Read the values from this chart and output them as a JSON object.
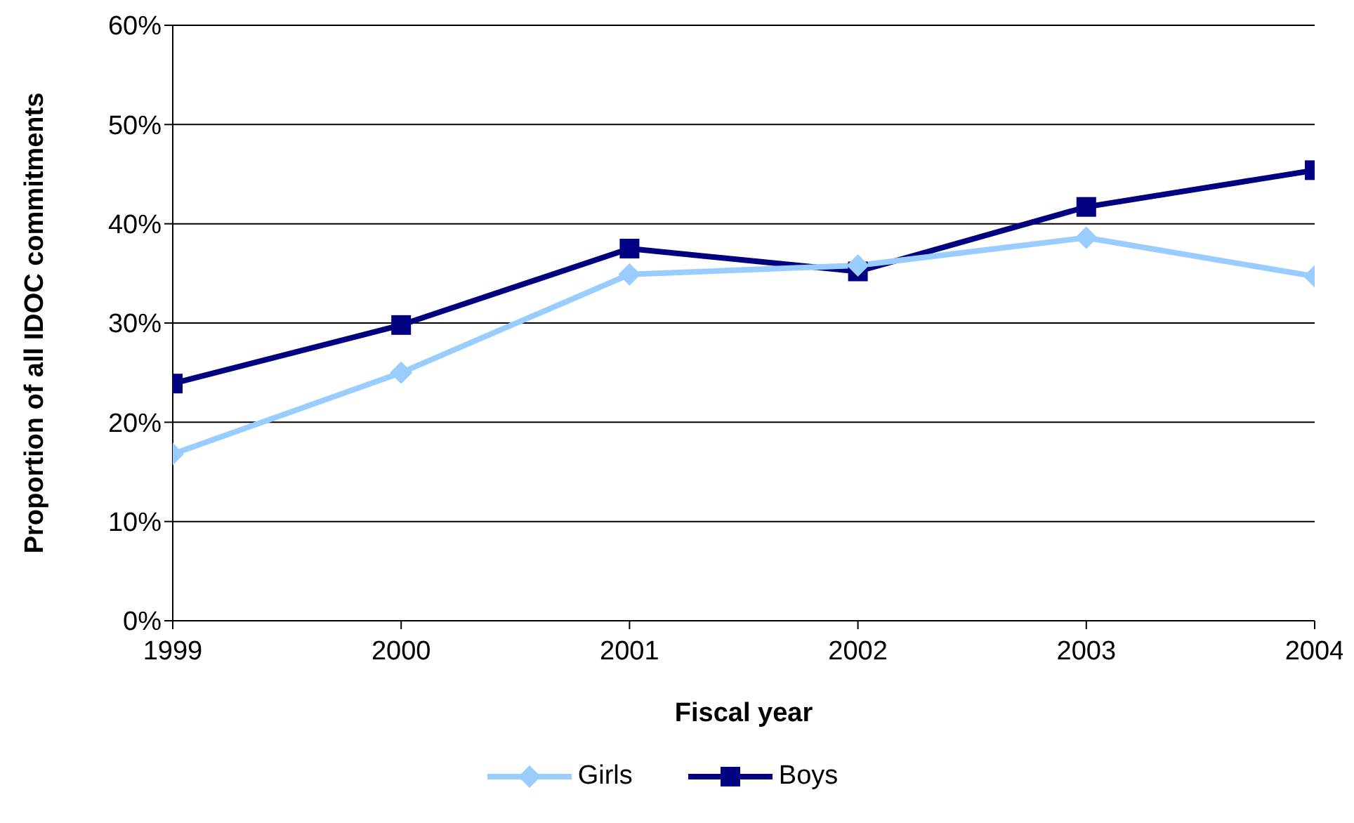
{
  "chart_data": {
    "type": "line",
    "xlabel": "Fiscal year",
    "ylabel": "Proportion of all IDOC commitments",
    "x": [
      1999,
      2000,
      2001,
      2002,
      2003,
      2004
    ],
    "series": [
      {
        "name": "Girls",
        "color": "#99ccff",
        "marker": "diamond",
        "values": [
          16.8,
          25.0,
          34.9,
          35.8,
          38.6,
          34.7
        ]
      },
      {
        "name": "Boys",
        "color": "#000080",
        "marker": "square",
        "values": [
          23.9,
          29.8,
          37.5,
          35.2,
          41.7,
          45.4
        ]
      }
    ],
    "xlim": [
      1999,
      2004
    ],
    "xticks": [
      1999,
      2000,
      2001,
      2002,
      2003,
      2004
    ],
    "ylim": [
      0,
      60
    ],
    "yticks": [
      {
        "value": 0,
        "label": "0%"
      },
      {
        "value": 10,
        "label": "10%"
      },
      {
        "value": 20,
        "label": "20%"
      },
      {
        "value": 30,
        "label": "30%"
      },
      {
        "value": 40,
        "label": "40%"
      },
      {
        "value": 50,
        "label": "50%"
      },
      {
        "value": 60,
        "label": "60%"
      }
    ],
    "grid": "y",
    "legend": "bottom",
    "line_style": "solid"
  }
}
